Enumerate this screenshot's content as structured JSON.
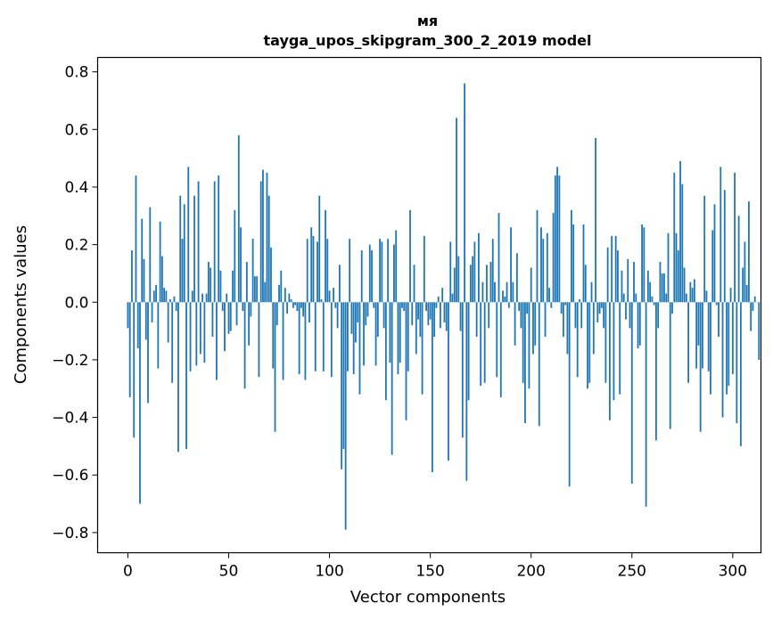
{
  "chart_data": {
    "type": "bar",
    "title_line1": "мя",
    "title_line2": "tayga_upos_skipgram_300_2_2019 model",
    "xlabel": "Vector components",
    "ylabel": "Components values",
    "xlim": [
      -15,
      314
    ],
    "ylim": [
      -0.87,
      0.85
    ],
    "x_ticks": [
      0,
      50,
      100,
      150,
      200,
      250,
      300
    ],
    "x_tick_labels": [
      "0",
      "50",
      "100",
      "150",
      "200",
      "250",
      "300"
    ],
    "y_ticks": [
      0.8,
      0.6,
      0.4,
      0.2,
      0.0,
      -0.2,
      -0.4,
      -0.6,
      -0.8
    ],
    "y_tick_labels": [
      "0.8",
      "0.6",
      "0.4",
      "0.2",
      "0.0",
      "−0.2",
      "−0.4",
      "−0.6",
      "−0.8"
    ],
    "bar_color": "#1f77b4",
    "grid": false,
    "values": [
      -0.09,
      -0.33,
      0.18,
      -0.47,
      0.44,
      -0.16,
      -0.7,
      0.29,
      0.15,
      -0.13,
      -0.35,
      0.33,
      -0.07,
      0.04,
      0.06,
      -0.23,
      0.28,
      0.16,
      0.05,
      0.04,
      -0.14,
      0.01,
      -0.28,
      0.02,
      -0.03,
      -0.52,
      0.37,
      0.22,
      0.34,
      -0.51,
      0.47,
      -0.24,
      0.04,
      0.37,
      -0.22,
      0.42,
      -0.18,
      0.03,
      -0.21,
      0.03,
      0.14,
      0.12,
      -0.12,
      0.42,
      -0.27,
      0.44,
      0.11,
      -0.03,
      -0.17,
      0.03,
      -0.11,
      -0.1,
      0.11,
      0.32,
      -0.08,
      0.58,
      0.26,
      -0.03,
      -0.3,
      0.14,
      -0.15,
      -0.05,
      0.22,
      0.09,
      0.09,
      -0.26,
      0.42,
      0.46,
      0.07,
      0.45,
      0.37,
      0.19,
      -0.23,
      -0.45,
      -0.08,
      0.06,
      0.11,
      -0.27,
      0.05,
      -0.04,
      0.03,
      0.01,
      -0.02,
      -0.01,
      -0.03,
      -0.25,
      -0.02,
      -0.05,
      -0.27,
      0.22,
      -0.07,
      0.26,
      0.23,
      -0.24,
      0.21,
      0.37,
      0.01,
      -0.24,
      0.32,
      0.22,
      0.04,
      -0.26,
      0.05,
      -0.02,
      -0.09,
      0.13,
      -0.58,
      -0.51,
      -0.79,
      -0.24,
      0.22,
      -0.11,
      -0.25,
      -0.14,
      -0.07,
      -0.32,
      0.18,
      -0.22,
      -0.08,
      -0.05,
      0.2,
      0.18,
      -0.02,
      -0.22,
      -0.12,
      0.22,
      0.21,
      -0.09,
      -0.34,
      0.22,
      -0.21,
      -0.53,
      0.2,
      0.25,
      -0.25,
      -0.21,
      -0.02,
      -0.03,
      -0.41,
      -0.24,
      0.32,
      -0.08,
      0.13,
      -0.18,
      -0.06,
      -0.12,
      -0.32,
      0.23,
      -0.03,
      -0.08,
      -0.06,
      -0.59,
      -0.12,
      -0.02,
      0.02,
      -0.09,
      0.05,
      -0.07,
      -0.1,
      -0.55,
      0.21,
      0.03,
      0.12,
      0.64,
      0.16,
      -0.1,
      -0.47,
      0.76,
      -0.62,
      -0.34,
      0.13,
      0.16,
      0.21,
      -0.12,
      0.24,
      -0.29,
      0.07,
      -0.28,
      0.13,
      -0.09,
      0.14,
      0.22,
      0.07,
      -0.26,
      0.31,
      -0.33,
      0.04,
      0.02,
      0.07,
      -0.02,
      0.26,
      0.07,
      -0.15,
      0.17,
      -0.03,
      -0.09,
      -0.28,
      -0.42,
      -0.04,
      -0.3,
      0.12,
      -0.18,
      -0.15,
      0.32,
      -0.43,
      0.26,
      0.22,
      -0.12,
      0.24,
      0.05,
      -0.02,
      0.31,
      0.44,
      0.47,
      0.44,
      -0.04,
      -0.12,
      -0.01,
      -0.18,
      -0.64,
      0.32,
      0.27,
      -0.09,
      -0.26,
      0.01,
      -0.09,
      0.27,
      0.13,
      -0.3,
      -0.28,
      0.07,
      -0.18,
      0.57,
      -0.07,
      -0.04,
      -0.02,
      -0.09,
      -0.28,
      0.19,
      -0.41,
      0.23,
      -0.34,
      0.23,
      0.18,
      -0.32,
      0.11,
      0.03,
      -0.06,
      0.15,
      -0.09,
      -0.63,
      0.14,
      0.03,
      -0.16,
      -0.15,
      0.27,
      0.26,
      -0.71,
      0.11,
      0.07,
      0.02,
      -0.01,
      -0.48,
      -0.09,
      0.14,
      0.1,
      0.1,
      0.03,
      0.24,
      -0.44,
      -0.04,
      0.45,
      0.24,
      0.18,
      0.49,
      0.41,
      0.12,
      0.03,
      -0.28,
      0.07,
      0.05,
      0.08,
      -0.23,
      -0.15,
      -0.45,
      -0.23,
      0.37,
      0.04,
      -0.24,
      -0.32,
      0.25,
      0.34,
      -0.01,
      -0.12,
      0.47,
      -0.4,
      0.39,
      -0.32,
      -0.29,
      0.05,
      -0.25,
      0.45,
      -0.42,
      0.3,
      -0.5,
      0.12,
      0.21,
      0.06,
      0.35,
      -0.1,
      -0.03,
      0.02,
      0.0,
      -0.2
    ]
  }
}
